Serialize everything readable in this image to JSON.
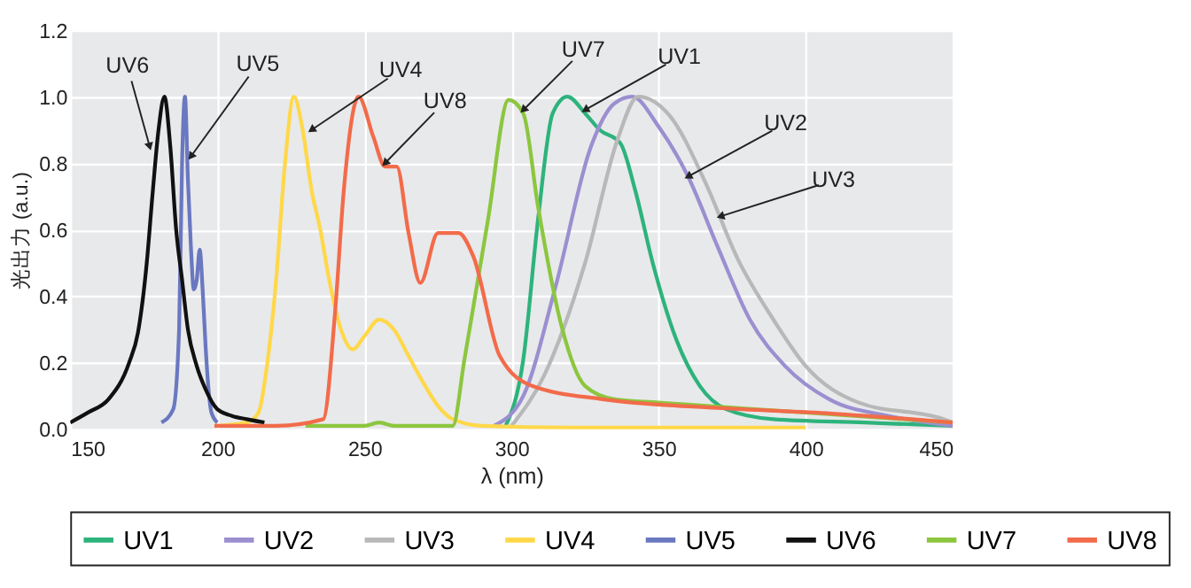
{
  "chart_data": {
    "type": "line",
    "xlabel": "λ (nm)",
    "ylabel": "光出力 (a.u.)",
    "xlim": [
      150,
      450
    ],
    "xticks": [
      150,
      200,
      250,
      300,
      350,
      400,
      450
    ],
    "ylim": [
      0,
      1.2
    ],
    "yticks": [
      {
        "value": 0,
        "label": "0.0"
      },
      {
        "value": 0.2,
        "label": "0.2"
      },
      {
        "value": 0.4,
        "label": "0.4"
      },
      {
        "value": 0.6,
        "label": "0.6"
      },
      {
        "value": 0.8,
        "label": "0.8"
      },
      {
        "value": 1.0,
        "label": "1.0"
      },
      {
        "value": 1.2,
        "label": "1.2"
      }
    ],
    "grid": true,
    "legend": "bottom",
    "marker": "none",
    "line_style": "solid",
    "series": [
      {
        "name": "UV1",
        "color": "#2db37c",
        "x": [
          298,
          304,
          309,
          314,
          319,
          325,
          330,
          337,
          342,
          348,
          356,
          364,
          373,
          389,
          420,
          450
        ],
        "values": [
          0.01,
          0.21,
          0.63,
          0.95,
          1.0,
          0.95,
          0.9,
          0.86,
          0.72,
          0.5,
          0.27,
          0.13,
          0.06,
          0.03,
          0.02,
          0.01
        ]
      },
      {
        "name": "UV2",
        "color": "#9b8fd0",
        "x": [
          294,
          304,
          315,
          327,
          335,
          341,
          350,
          360,
          370,
          381,
          393,
          408,
          428,
          450
        ],
        "values": [
          0.01,
          0.1,
          0.43,
          0.85,
          0.98,
          1.0,
          0.91,
          0.76,
          0.55,
          0.33,
          0.19,
          0.09,
          0.04,
          0.01
        ]
      },
      {
        "name": "UV3",
        "color": "#b8b8b8",
        "x": [
          300,
          311,
          325,
          336,
          343,
          354,
          366,
          377,
          389,
          400,
          418,
          447,
          450
        ],
        "values": [
          0.01,
          0.16,
          0.5,
          0.87,
          1.0,
          0.94,
          0.74,
          0.51,
          0.33,
          0.19,
          0.08,
          0.03,
          0.02
        ]
      },
      {
        "name": "UV4",
        "color": "#ffd84a",
        "x": [
          199,
          210,
          214,
          217,
          220,
          223,
          226,
          229,
          232,
          235,
          238,
          242,
          246,
          250,
          255,
          260,
          265,
          270,
          275,
          280,
          290,
          320,
          400
        ],
        "values": [
          0.01,
          0.02,
          0.05,
          0.2,
          0.45,
          0.8,
          1.0,
          0.9,
          0.72,
          0.6,
          0.45,
          0.3,
          0.24,
          0.28,
          0.33,
          0.3,
          0.22,
          0.14,
          0.07,
          0.03,
          0.01,
          0.005,
          0.005
        ]
      },
      {
        "name": "UV5",
        "color": "#6a78c0",
        "x": [
          181,
          185,
          187,
          188,
          189,
          190,
          191,
          192,
          193,
          194,
          195,
          196,
          197,
          198,
          200
        ],
        "values": [
          0.02,
          0.06,
          0.3,
          0.8,
          1.0,
          0.75,
          0.55,
          0.42,
          0.45,
          0.54,
          0.42,
          0.25,
          0.12,
          0.05,
          0.02
        ]
      },
      {
        "name": "UV6",
        "color": "#111111",
        "x": [
          150,
          156,
          163,
          170,
          173,
          176,
          178,
          180,
          182,
          184,
          186,
          188,
          190,
          193,
          196,
          200,
          205,
          210,
          216
        ],
        "values": [
          0.02,
          0.05,
          0.09,
          0.2,
          0.29,
          0.5,
          0.71,
          0.9,
          1.0,
          0.85,
          0.6,
          0.45,
          0.3,
          0.19,
          0.12,
          0.06,
          0.04,
          0.03,
          0.02
        ]
      },
      {
        "name": "UV7",
        "color": "#8cc63f",
        "x": [
          230,
          250,
          255,
          260,
          280,
          284,
          292,
          299,
          304,
          309,
          317,
          325,
          335,
          350,
          400,
          450
        ],
        "values": [
          0.01,
          0.01,
          0.02,
          0.01,
          0.01,
          0.21,
          0.63,
          0.99,
          0.95,
          0.67,
          0.31,
          0.13,
          0.09,
          0.08,
          0.05,
          0.02
        ]
      },
      {
        "name": "UV8",
        "color": "#f26b4a",
        "x": [
          199,
          220,
          236,
          240,
          243,
          248,
          253,
          257,
          261,
          265,
          269,
          275,
          282,
          287,
          296,
          307,
          331,
          370,
          409,
          450
        ],
        "values": [
          0.01,
          0.01,
          0.03,
          0.35,
          0.72,
          1.0,
          0.88,
          0.79,
          0.79,
          0.59,
          0.44,
          0.59,
          0.59,
          0.52,
          0.22,
          0.13,
          0.09,
          0.064,
          0.047,
          0.02
        ]
      }
    ],
    "annotations": [
      {
        "text": "UV6",
        "x": 177,
        "y": 0.85
      },
      {
        "text": "UV5",
        "x": 191,
        "y": 0.82
      },
      {
        "text": "UV4",
        "x": 232,
        "y": 0.9
      },
      {
        "text": "UV8",
        "x": 257,
        "y": 0.8
      },
      {
        "text": "UV7",
        "x": 304,
        "y": 0.96
      },
      {
        "text": "UV1",
        "x": 325,
        "y": 0.96
      },
      {
        "text": "UV2",
        "x": 360,
        "y": 0.76
      },
      {
        "text": "UV3",
        "x": 371,
        "y": 0.64
      }
    ]
  }
}
